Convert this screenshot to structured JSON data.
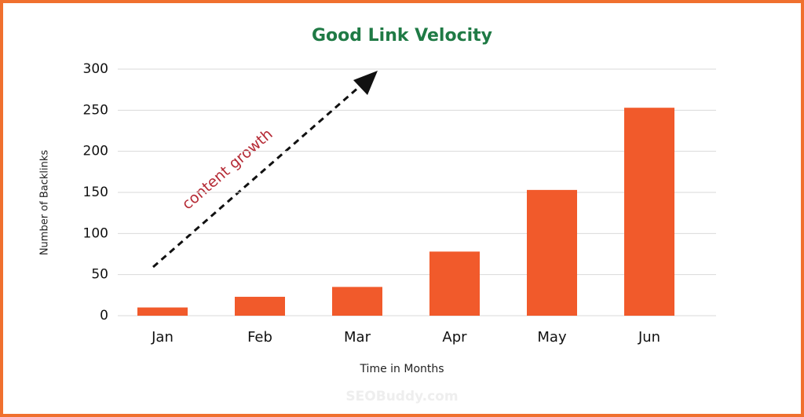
{
  "chart_data": {
    "type": "bar",
    "title": "Good Link Velocity",
    "x_label": "Time in Months",
    "y_label": "Number of Backlinks",
    "categories": [
      "Jan",
      "Feb",
      "Mar",
      "Apr",
      "May",
      "Jun"
    ],
    "values": [
      10,
      23,
      35,
      78,
      153,
      253
    ],
    "color": "#f15a2b",
    "ylim": [
      0,
      300
    ],
    "yticks": [
      0,
      50,
      100,
      150,
      200,
      250,
      300
    ],
    "grid": true,
    "annotation": "content growth",
    "watermark": "SEOBuddy.com"
  }
}
